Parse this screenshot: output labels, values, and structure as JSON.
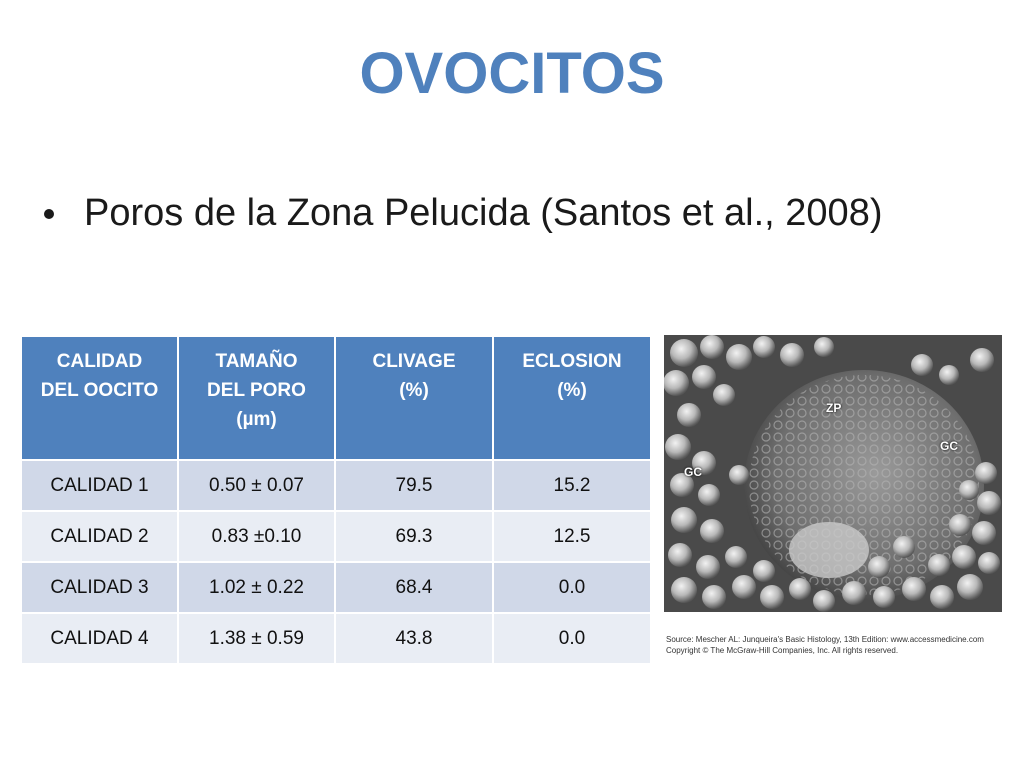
{
  "slide": {
    "title": "OVOCITOS",
    "bullet": "Poros de la Zona Pelucida (Santos et al., 2008)"
  },
  "table": {
    "headers": [
      [
        "CALIDAD",
        "DEL OOCITO"
      ],
      [
        "TAMAÑO",
        "DEL PORO",
        "(µm)"
      ],
      [
        "CLIVAGE",
        "(%)"
      ],
      [
        "ECLOSION",
        "(%)"
      ]
    ],
    "rows": [
      [
        "CALIDAD 1",
        "0.50 ± 0.07",
        "79.5",
        "15.2"
      ],
      [
        "CALIDAD 2",
        "0.83 ±0.10",
        "69.3",
        "12.5"
      ],
      [
        "CALIDAD 3",
        "1.02 ± 0.22",
        "68.4",
        "0.0"
      ],
      [
        "CALIDAD 4",
        "1.38 ± 0.59",
        "43.8",
        "0.0"
      ]
    ]
  },
  "micrograph": {
    "labels": {
      "zp": "ZP",
      "gc_right": "GC",
      "gc_left": "GC"
    },
    "caption_line1": "Source: Mescher AL: Junqueira's Basic Histology, 13th Edition: www.accessmedicine.com",
    "caption_line2": "Copyright © The McGraw-Hill Companies, Inc. All rights reserved."
  }
}
